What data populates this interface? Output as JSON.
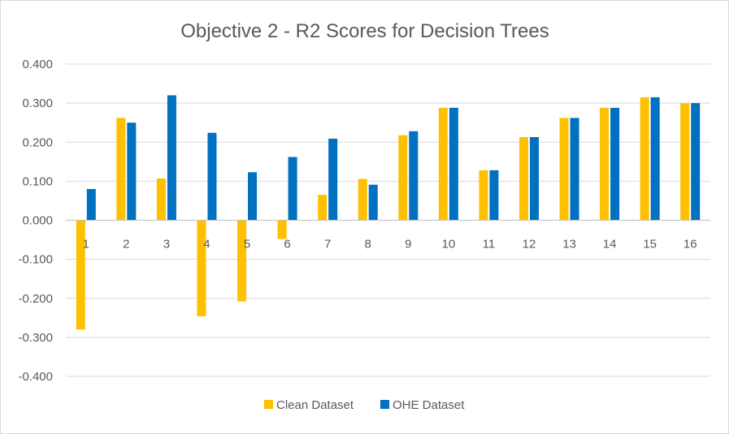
{
  "chart_data": {
    "type": "bar",
    "title": "Objective 2 - R2 Scores for Decision Trees",
    "xlabel": "",
    "ylabel": "",
    "categories": [
      "1",
      "2",
      "3",
      "4",
      "5",
      "6",
      "7",
      "8",
      "9",
      "10",
      "11",
      "12",
      "13",
      "14",
      "15",
      "16"
    ],
    "series": [
      {
        "name": "Clean Dataset",
        "color": "#FFC000",
        "values": [
          -0.28,
          0.262,
          0.107,
          -0.246,
          -0.208,
          -0.048,
          0.065,
          0.106,
          0.218,
          0.288,
          0.128,
          0.213,
          0.262,
          0.288,
          0.315,
          0.3
        ]
      },
      {
        "name": "OHE Dataset",
        "color": "#0070C0",
        "values": [
          0.08,
          0.25,
          0.32,
          0.224,
          0.123,
          0.162,
          0.209,
          0.091,
          0.228,
          0.288,
          0.128,
          0.213,
          0.262,
          0.288,
          0.315,
          0.3
        ]
      }
    ],
    "ylim": [
      -0.4,
      0.4
    ],
    "yticks": [
      "0.400",
      "0.300",
      "0.200",
      "0.100",
      "0.000",
      "-0.100",
      "-0.200",
      "-0.300",
      "-0.400"
    ],
    "ytick_values": [
      0.4,
      0.3,
      0.2,
      0.1,
      0.0,
      -0.1,
      -0.2,
      -0.3,
      -0.4
    ],
    "grid": true,
    "legend_position": "bottom",
    "gridline_color": "#d9d9d9",
    "axis_line_color": "#bfbfbf",
    "text_color": "#595959"
  }
}
